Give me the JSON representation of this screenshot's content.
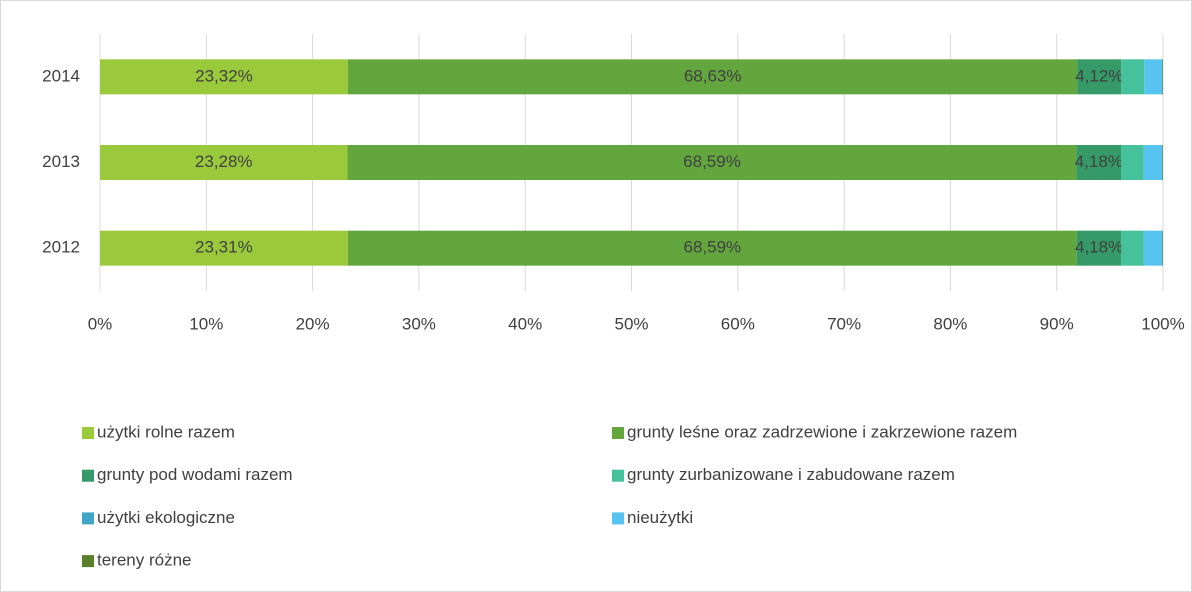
{
  "chart_data": {
    "type": "stacked-barh",
    "categories": [
      "2012",
      "2013",
      "2014"
    ],
    "series": [
      {
        "name": "użytki rolne razem",
        "color": "#9bc93c",
        "values": [
          23.31,
          23.28,
          23.32
        ],
        "value_labels": [
          "23,31%",
          "23,28%",
          "23,32%"
        ]
      },
      {
        "name": "grunty leśne oraz zadrzewione i zakrzewione razem",
        "color": "#64a63e",
        "values": [
          68.59,
          68.59,
          68.63
        ],
        "value_labels": [
          "68,59%",
          "68,59%",
          "68,63%"
        ]
      },
      {
        "name": "grunty pod wodami razem",
        "color": "#359a68",
        "values": [
          4.18,
          4.18,
          4.12
        ],
        "value_labels": [
          "4,18%",
          "4,18%",
          "4,12%"
        ]
      },
      {
        "name": "grunty zurbanizowane i zabudowane razem",
        "color": "#45c29c",
        "values": [
          2.1,
          2.12,
          2.15
        ]
      },
      {
        "name": "użytki ekologiczne",
        "color": "#3ea6c4",
        "values": [
          0.02,
          0.02,
          0.02
        ]
      },
      {
        "name": "nieużytki",
        "color": "#56c3f0",
        "values": [
          1.74,
          1.75,
          1.7
        ]
      },
      {
        "name": "tereny różne",
        "color": "#5a7e2a",
        "values": [
          0.06,
          0.06,
          0.06
        ]
      }
    ],
    "xlim": [
      0,
      100
    ],
    "xticks": [
      {
        "value": 0,
        "label": "0%"
      },
      {
        "value": 10,
        "label": "10%"
      },
      {
        "value": 20,
        "label": "20%"
      },
      {
        "value": 30,
        "label": "30%"
      },
      {
        "value": 40,
        "label": "40%"
      },
      {
        "value": 50,
        "label": "50%"
      },
      {
        "value": 60,
        "label": "60%"
      },
      {
        "value": 70,
        "label": "70%"
      },
      {
        "value": 80,
        "label": "80%"
      },
      {
        "value": 90,
        "label": "90%"
      },
      {
        "value": 100,
        "label": "100%"
      }
    ],
    "grid": true,
    "legend": "bottom"
  }
}
